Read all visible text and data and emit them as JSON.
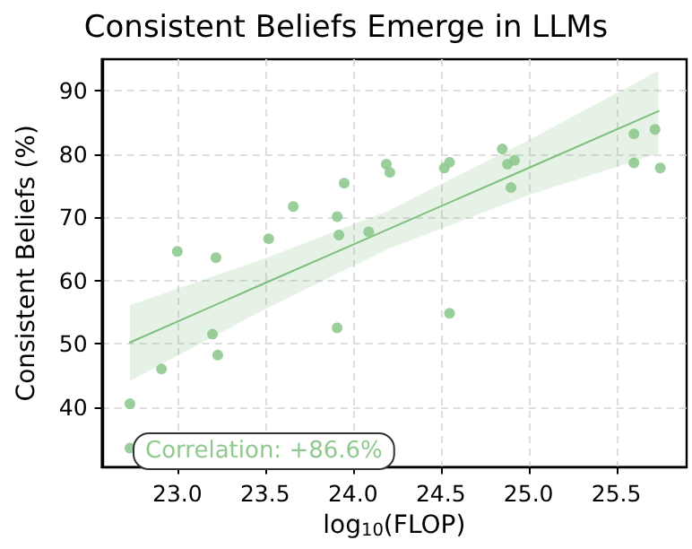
{
  "chart_data": {
    "type": "scatter",
    "title": "Consistent Beliefs Emerge in LLMs",
    "xlabel": "log$_{10}$(FLOP)",
    "ylabel": "Consistent Beliefs (%)",
    "annotations": [
      "Correlation: +86.6%"
    ],
    "series": [
      {
        "marker": "circle",
        "color": "#8fc98f",
        "x": [
          22.73,
          22.73,
          22.91,
          23.0,
          23.2,
          23.23,
          23.22,
          23.52,
          23.66,
          23.91,
          23.92,
          23.91,
          23.95,
          24.09,
          24.19,
          24.21,
          24.52,
          24.55,
          24.55,
          24.85,
          24.88,
          24.92,
          24.9,
          25.6,
          25.6,
          25.72,
          25.75
        ],
        "values": [
          40.5,
          33.5,
          46.0,
          64.6,
          51.5,
          48.2,
          63.6,
          66.6,
          71.7,
          70.1,
          67.2,
          52.5,
          75.4,
          67.7,
          78.4,
          77.1,
          77.8,
          78.7,
          54.8,
          80.8,
          78.4,
          79.0,
          74.7,
          83.2,
          78.6,
          83.9,
          77.8
        ]
      },
      {
        "type": "line",
        "marker": "none",
        "color": "#7fbf7f",
        "x": [
          22.73,
          23.5,
          24.2,
          25.0,
          25.74
        ],
        "values": [
          50.2,
          59.6,
          68.1,
          77.8,
          86.8
        ],
        "lower": [
          44.1,
          55.5,
          65.0,
          73.5,
          80.1
        ],
        "upper": [
          56.1,
          63.5,
          71.0,
          82.2,
          93.2
        ]
      }
    ],
    "xlim": [
      22.57,
      25.9
    ],
    "ylim": [
      30.5,
      95
    ],
    "xticks": [
      {
        "value": 23,
        "label": "23.0"
      },
      {
        "value": 23.5,
        "label": "23.5"
      },
      {
        "value": 24,
        "label": "24.0"
      },
      {
        "value": 24.5,
        "label": "24.5"
      },
      {
        "value": 25,
        "label": "25.0"
      },
      {
        "value": 25.5,
        "label": "25.5"
      }
    ],
    "yticks": [
      40,
      50,
      60,
      70,
      80,
      90
    ],
    "grid": true,
    "line_style": "solid"
  }
}
